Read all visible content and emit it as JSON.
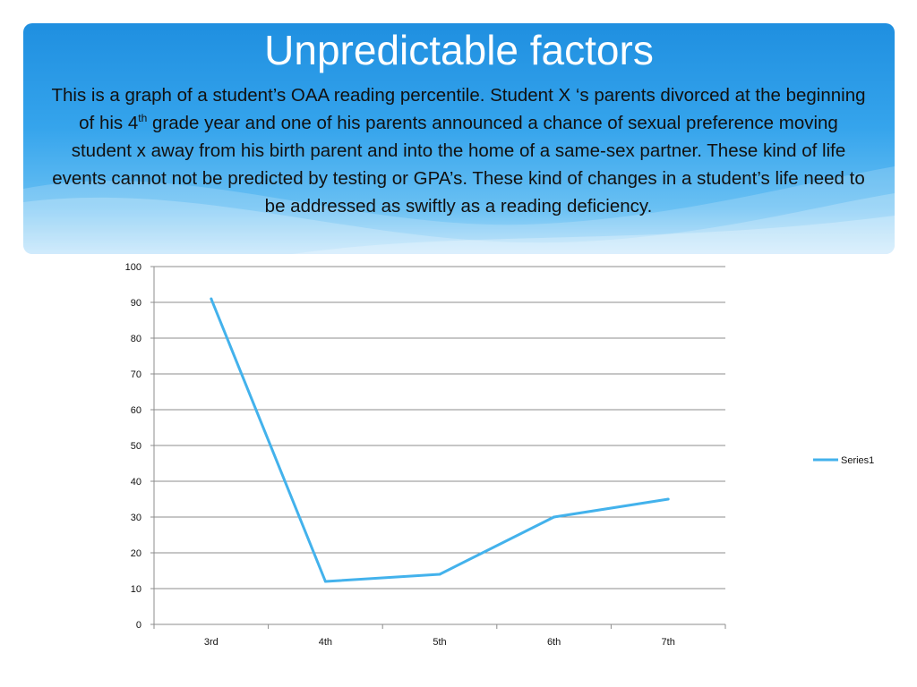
{
  "slide": {
    "title": "Unpredictable factors",
    "description_parts": [
      "This is a graph of a student’s OAA reading percentile.  Student X ‘s parents divorced at the beginning of his 4",
      "th",
      " grade year and one of his parents announced  a chance of sexual preference moving student x away from his birth parent and into the home of a same-sex partner. These kind of life events cannot not be predicted by testing or GPA’s.  These kind of changes in a student’s life need to be addressed as swiftly as a reading deficiency."
    ]
  },
  "colors": {
    "banner_top": "#1f8fe0",
    "series_line": "#43b2ec",
    "grid": "#8c8c8c"
  },
  "chart_data": {
    "type": "line",
    "categories": [
      "3rd",
      "4th",
      "5th",
      "6th",
      "7th"
    ],
    "series": [
      {
        "name": "Series1",
        "values": [
          91,
          12,
          14,
          30,
          35
        ]
      }
    ],
    "ylim": [
      0,
      100
    ],
    "yticks": [
      0,
      10,
      20,
      30,
      40,
      50,
      60,
      70,
      80,
      90,
      100
    ],
    "grid": true,
    "legend": "right"
  }
}
